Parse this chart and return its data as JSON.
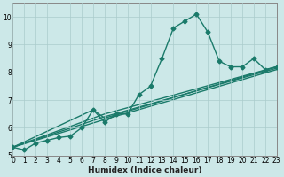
{
  "xlabel": "Humidex (Indice chaleur)",
  "bg_color": "#cce8e8",
  "line_color": "#1a7a6a",
  "markersize": 2.5,
  "linewidth": 1.0,
  "xlim": [
    0,
    23
  ],
  "ylim": [
    5,
    10.5
  ],
  "yticks": [
    5,
    6,
    7,
    8,
    9,
    10
  ],
  "xticks": [
    0,
    1,
    2,
    3,
    4,
    5,
    6,
    7,
    8,
    9,
    10,
    11,
    12,
    13,
    14,
    15,
    16,
    17,
    18,
    19,
    20,
    21,
    22,
    23
  ],
  "main_x": [
    0,
    1,
    2,
    3,
    4,
    5,
    6,
    7,
    8,
    9,
    10,
    11,
    12,
    13,
    14,
    15,
    16,
    17,
    18,
    19,
    20,
    21,
    22,
    23
  ],
  "main_y": [
    5.3,
    5.2,
    5.45,
    5.55,
    5.65,
    5.7,
    6.0,
    6.65,
    6.2,
    6.5,
    6.5,
    7.2,
    7.5,
    8.5,
    9.6,
    9.85,
    10.1,
    9.45,
    8.4,
    8.2,
    8.2,
    8.5,
    8.1,
    8.2
  ],
  "line2_x": [
    0,
    8,
    23
  ],
  "line2_y": [
    5.3,
    6.5,
    8.2
  ],
  "line3_x": [
    0,
    8,
    23
  ],
  "line3_y": [
    5.3,
    6.4,
    8.15
  ],
  "line4_x": [
    0,
    8,
    23
  ],
  "line4_y": [
    5.3,
    6.3,
    8.1
  ],
  "line5_x": [
    0,
    7,
    8,
    23
  ],
  "line5_y": [
    5.3,
    6.65,
    6.35,
    8.2
  ]
}
